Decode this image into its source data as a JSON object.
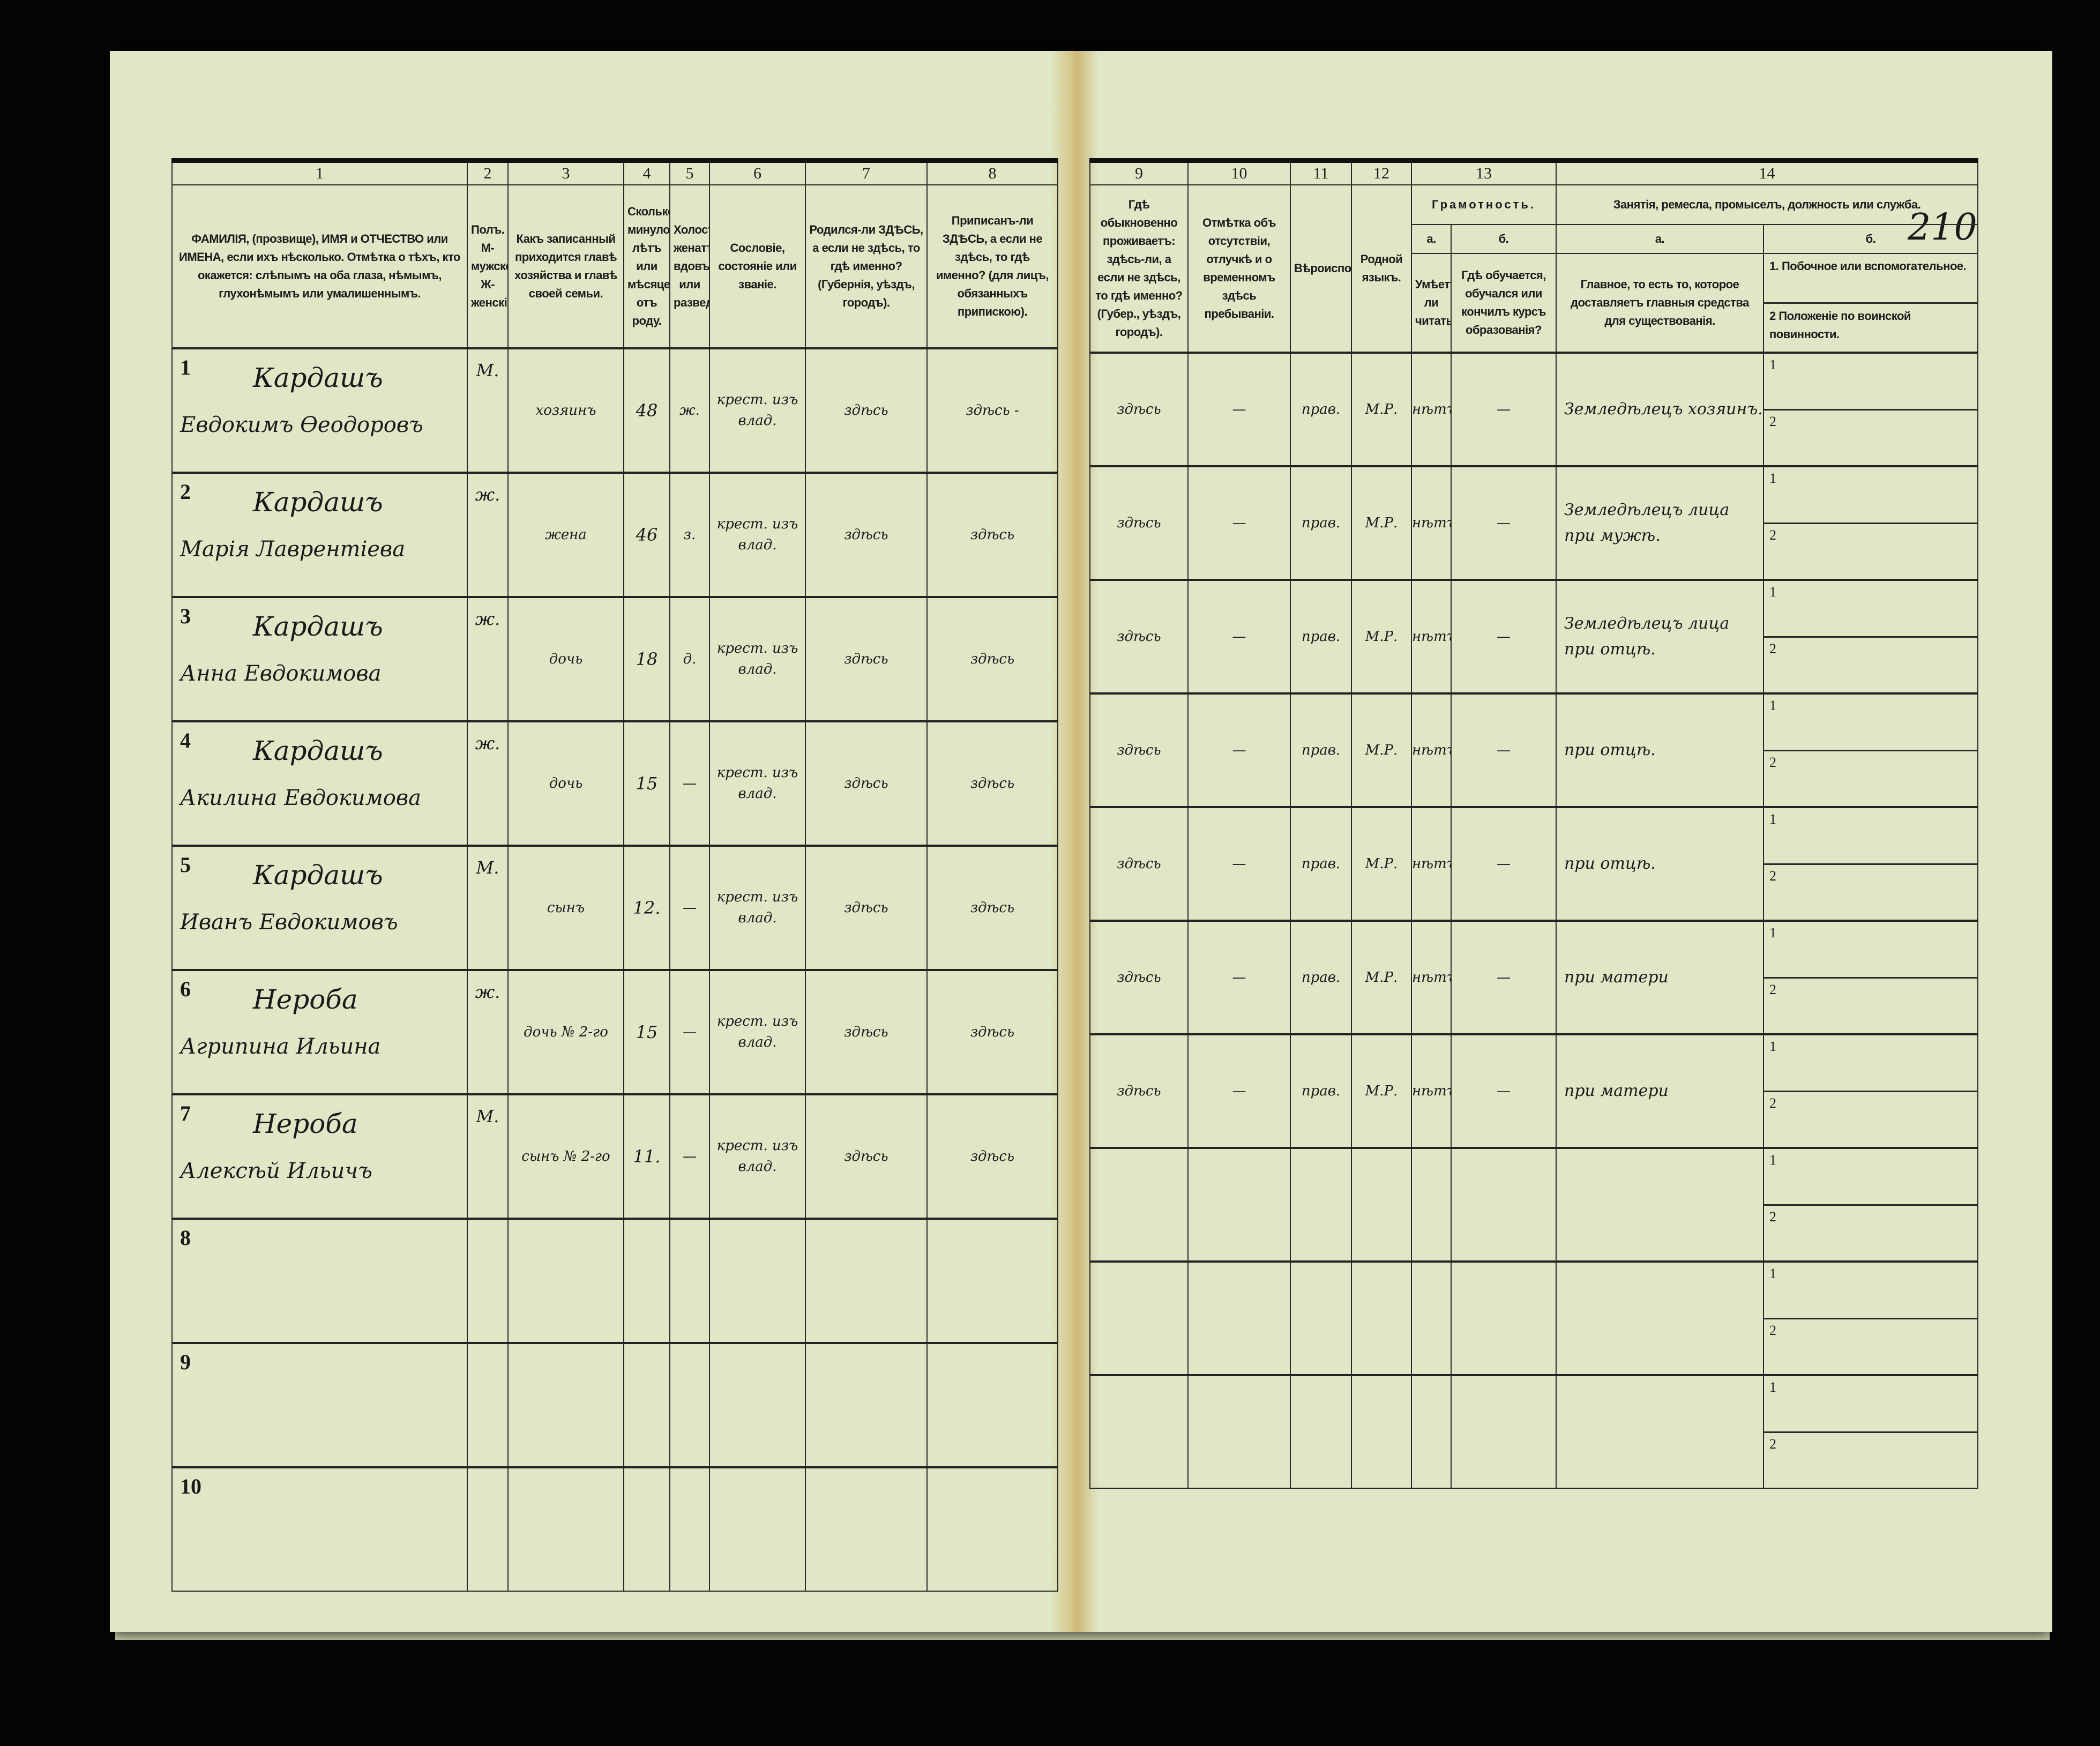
{
  "page_number": "210",
  "left_header": [
    {
      "num": "1",
      "text": "ФАМИЛІЯ, (прозвище), ИМЯ и ОТЧЕСТВО или ИМЕНА, если ихъ нѣсколько. Отмѣтка о тѣхъ, кто окажется: слѣпымъ на оба глаза, нѣмымъ, глухонѣмымъ или умалишеннымъ."
    },
    {
      "num": "2",
      "text": "Полъ. М-мужской. Ж-женскій."
    },
    {
      "num": "3",
      "text": "Какъ записанный приходится главѣ хозяйства и главѣ своей семьи."
    },
    {
      "num": "4",
      "text": "Сколько минуло лѣтъ или мѣсяцевъ отъ роду."
    },
    {
      "num": "5",
      "text": "Холостъ, женатъ, вдовъ или разведенъ."
    },
    {
      "num": "6",
      "text": "Сословіе, состояніе или званіе."
    },
    {
      "num": "7",
      "text": "Родился-ли ЗДѢСЬ, а если не здѣсь, то гдѣ именно? (Губернія, уѣздъ, городъ)."
    },
    {
      "num": "8",
      "text": "Приписанъ-ли ЗДѢСЬ, а если не здѣсь, то гдѣ именно? (для лицъ, обязанныхъ припискою)."
    }
  ],
  "right_header": {
    "c9": {
      "num": "9",
      "text": "Гдѣ обыкновенно проживаетъ: здѣсь-ли, а если не здѣсь, то гдѣ именно? (Губер., уѣздъ, городъ)."
    },
    "c10": {
      "num": "10",
      "text": "Отмѣтка объ отсутствіи, отлучкѣ и о временномъ здѣсь пребываніи."
    },
    "c11": {
      "num": "11",
      "text": "Вѣроисповѣданіе."
    },
    "c12": {
      "num": "12",
      "text": "Родной языкъ."
    },
    "c13": {
      "num": "13",
      "title": "Грамотность.",
      "a_label": "а.",
      "a_text": "Умѣетъ-ли читать?",
      "b_label": "б.",
      "b_text": "Гдѣ обучается, обучался или кончилъ курсъ образованія?"
    },
    "c14": {
      "num": "14",
      "title": "Занятія, ремесла, промыселъ, должность или служба.",
      "a_label": "а.",
      "a_text": "Главное, то есть то, которое доставляетъ главныя средства для существованія.",
      "b_label": "б.",
      "b1_text": "1. Побочное или вспомогательное.",
      "b2_text": "2 Положеніе по воинской повинности."
    }
  },
  "sub_labels": [
    "1",
    "2"
  ],
  "rows": [
    {
      "num": "1",
      "surname": "Кардашъ",
      "given": "Евдокимъ Өеодоровъ",
      "sex": "М.",
      "relation": "хозяинъ",
      "age": "48",
      "marital": "ж.",
      "estate": "крест. изъ влад.",
      "born": "здѣсь",
      "registered": "здѣсь -",
      "residence": "здѣсь",
      "absence": "—",
      "religion": "прав.",
      "language": "М.Р.",
      "literate": "нѣтъ",
      "education": "—",
      "occupation": "Земледѣлецъ хозяинъ."
    },
    {
      "num": "2",
      "surname": "Кардашъ",
      "given": "Марія Лаврентіева",
      "sex": "ж.",
      "relation": "жена",
      "age": "46",
      "marital": "з.",
      "estate": "крест. изъ влад.",
      "born": "здѣсь",
      "registered": "здѣсь",
      "residence": "здѣсь",
      "absence": "—",
      "religion": "прав.",
      "language": "М.Р.",
      "literate": "нѣтъ",
      "education": "—",
      "occupation": "Земледѣлецъ лица при мужѣ."
    },
    {
      "num": "3",
      "surname": "Кардашъ",
      "given": "Анна Евдокимова",
      "sex": "ж.",
      "relation": "дочь",
      "age": "18",
      "marital": "д.",
      "estate": "крест. изъ влад.",
      "born": "здѣсь",
      "registered": "здѣсь",
      "residence": "здѣсь",
      "absence": "—",
      "religion": "прав.",
      "language": "М.Р.",
      "literate": "нѣтъ",
      "education": "—",
      "occupation": "Земледѣлецъ лица при отцѣ."
    },
    {
      "num": "4",
      "surname": "Кардашъ",
      "given": "Акилина Евдокимова",
      "sex": "ж.",
      "relation": "дочь",
      "age": "15",
      "marital": "—",
      "estate": "крест. изъ влад.",
      "born": "здѣсь",
      "registered": "здѣсь",
      "residence": "здѣсь",
      "absence": "—",
      "religion": "прав.",
      "language": "М.Р.",
      "literate": "нѣтъ",
      "education": "—",
      "occupation": "при отцѣ."
    },
    {
      "num": "5",
      "surname": "Кардашъ",
      "given": "Иванъ Евдокимовъ",
      "sex": "М.",
      "relation": "сынъ",
      "age": "12.",
      "marital": "—",
      "estate": "крест. изъ влад.",
      "born": "здѣсь",
      "registered": "здѣсь",
      "residence": "здѣсь",
      "absence": "—",
      "religion": "прав.",
      "language": "М.Р.",
      "literate": "нѣтъ",
      "education": "—",
      "occupation": "при отцѣ."
    },
    {
      "num": "6",
      "surname": "Нероба",
      "given": "Агрипина Ильина",
      "sex": "ж.",
      "relation": "дочь № 2-го",
      "age": "15",
      "marital": "—",
      "estate": "крест. изъ влад.",
      "born": "здѣсь",
      "registered": "здѣсь",
      "residence": "здѣсь",
      "absence": "—",
      "religion": "прав.",
      "language": "М.Р.",
      "literate": "нѣтъ",
      "education": "—",
      "occupation": "при матери"
    },
    {
      "num": "7",
      "surname": "Нероба",
      "given": "Алексѣй Ильичъ",
      "sex": "М.",
      "relation": "сынъ № 2-го",
      "age": "11.",
      "marital": "—",
      "estate": "крест. изъ влад.",
      "born": "здѣсь",
      "registered": "здѣсь",
      "residence": "здѣсь",
      "absence": "—",
      "religion": "прав.",
      "language": "М.Р.",
      "literate": "нѣтъ",
      "education": "—",
      "occupation": "при матери"
    },
    {
      "num": "8"
    },
    {
      "num": "9"
    },
    {
      "num": "10"
    }
  ]
}
